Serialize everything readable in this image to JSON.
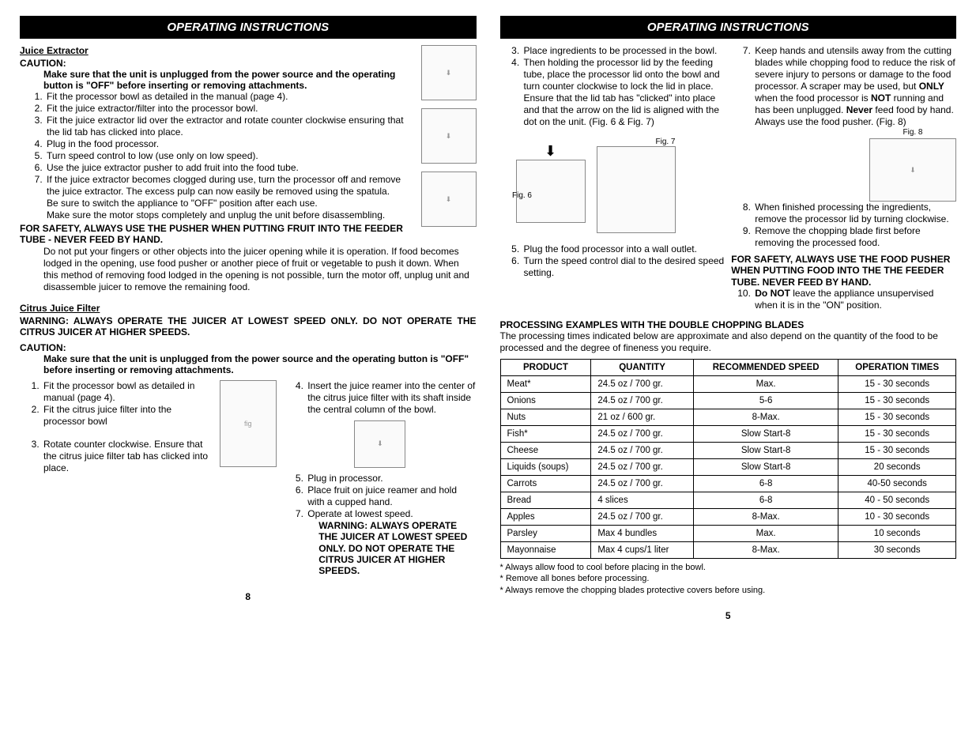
{
  "header": "OPERATING INSTRUCTIONS",
  "left": {
    "juice_title": "Juice Extractor",
    "caution_label": "CAUTION:",
    "caution_text": "Make sure that the unit is unplugged from the power source and the operating button is \"OFF\" before inserting or removing attachments.",
    "steps": [
      "Fit the processor bowl as detailed in the manual (page 4).",
      "Fit the juice extractor/filter into the processor bowl.",
      "Fit the juice extractor lid over the extractor and rotate counter clockwise ensuring that the lid tab has clicked into place.",
      "Plug in the food processor.",
      "Turn speed control to low (use only on low speed).",
      "Use the juice extractor pusher to add fruit into the food tube.",
      "If the juice extractor becomes clogged during use, turn the processor off and remove the juice extractor. The excess pulp can now  easily be removed using the spatula."
    ],
    "post_step7a": "Be sure to switch the appliance to \"OFF\" position after each use.",
    "post_step7b": "Make sure the motor stops completely and unplug the unit before disassembling.",
    "safety1a": "FOR SAFETY, ALWAYS USE THE PUSHER WHEN PUTTING FRUIT INTO THE FEEDER TUBE - NEVER FEED BY HAND.",
    "safety1b": "Do not put your fingers or other objects into the juicer opening while it is operation.  If food becomes lodged in the opening, use food pusher or another piece of fruit or vegetable to push it down.  When this method of removing food lodged in the opening is not possible, turn the motor off, unplug unit and disassemble juicer to remove the remaining food.",
    "citrus_title": "Citrus Juice Filter",
    "warn_label": "WARNING:",
    "citrus_warn": "ALWAYS OPERATE THE JUICER AT LOWEST SPEED ONLY.  DO NOT OPERATE THE CITRUS JUICER AT HIGHER SPEEDS.",
    "caution2_text": "Make sure that the unit is unplugged from the power source and the operating button is \"OFF\" before inserting or removing attachments.",
    "citrus_steps_a": [
      "Fit the processor bowl as detailed in manual (page 4).",
      "Fit the citrus juice filter into the processor bowl",
      "Rotate counter clockwise. Ensure that the citrus juice filter tab has clicked into place."
    ],
    "citrus_steps_b": [
      "Insert the juice reamer into the center of the citrus juice filter with its shaft inside the central column of the bowl.",
      "Plug in processor.",
      "Place fruit on juice reamer and hold with a cupped hand.",
      "Operate at lowest speed."
    ],
    "citrus_final_warn": "WARNING: ALWAYS OPERATE THE JUICER AT LOWEST SPEED ONLY.  DO NOT OPERATE THE CITRUS JUICER AT HIGHER SPEEDS.",
    "page_num": "8"
  },
  "right": {
    "steps_a": [
      "Place ingredients to be processed in the bowl.",
      "Then holding the processor lid by the feeding tube, place the processor lid onto the bowl  and turn counter clockwise to lock the lid in place. Ensure that the lid tab has \"clicked\" into place and that the arrow on the lid is aligned with the dot on the unit. (Fig. 6 & Fig. 7)"
    ],
    "fig6": "Fig. 6",
    "fig7": "Fig. 7",
    "fig8": "Fig. 8",
    "steps_56": [
      "Plug the food processor into a wall outlet.",
      "Turn the speed control dial to the desired speed setting."
    ],
    "step7_pre": "Keep hands and utensils away from the cutting blades while chopping food to reduce the risk of severe injury to persons or damage to the food processor. A scraper may be used, but ",
    "step7_only": "ONLY",
    "step7_mid": " when the food processor is ",
    "step7_not": "NOT",
    "step7_mid2": " running and has been unplugged. ",
    "step7_never": "Never",
    "step7_end": " feed food by hand. Always use the food pusher. (Fig. 8)",
    "steps_89": [
      "When finished processing the ingredients, remove the processor lid by turning clockwise.",
      "Remove the chopping blade first before removing the processed food."
    ],
    "safety2": "FOR SAFETY, ALWAYS USE THE FOOD PUSHER WHEN PUTTING FOOD INTO THE THE FEEDER TUBE.  NEVER FEED BY HAND.",
    "step10_donot": "Do NOT",
    "step10_rest": " leave the appliance unsupervised when it is in the \"ON\" position.",
    "proc_heading": "PROCESSING EXAMPLES WITH THE DOUBLE CHOPPING BLADES",
    "proc_intro": "The processing times indicated below are approximate and also depend on the quantity of the food to be processed and the degree of fineness you require.",
    "table": {
      "headers": [
        "PRODUCT",
        "QUANTITY",
        "RECOMMENDED SPEED",
        "OPERATION TIMES"
      ],
      "rows": [
        [
          "Meat*",
          "24.5 oz / 700 gr.",
          "Max.",
          "15 - 30 seconds"
        ],
        [
          "Onions",
          "24.5 oz / 700 gr.",
          "5-6",
          "15 - 30 seconds"
        ],
        [
          "Nuts",
          "21 oz / 600 gr.",
          "8-Max.",
          "15 - 30 seconds"
        ],
        [
          "Fish*",
          "24.5 oz / 700 gr.",
          "Slow Start-8",
          "15 - 30 seconds"
        ],
        [
          "Cheese",
          "24.5 oz / 700 gr.",
          "Slow Start-8",
          "15 - 30 seconds"
        ],
        [
          "Liquids (soups)",
          "24.5 oz / 700 gr.",
          "Slow Start-8",
          "20 seconds"
        ],
        [
          "Carrots",
          "24.5 oz / 700 gr.",
          "6-8",
          "40-50 seconds"
        ],
        [
          "Bread",
          "4 slices",
          "6-8",
          "40 - 50 seconds"
        ],
        [
          "Apples",
          "24.5 oz / 700 gr.",
          "8-Max.",
          "10 - 30 seconds"
        ],
        [
          "Parsley",
          "Max 4 bundles",
          "Max.",
          "10 seconds"
        ],
        [
          "Mayonnaise",
          "Max 4 cups/1 liter",
          "8-Max.",
          "30 seconds"
        ]
      ]
    },
    "footnotes": [
      "* Always allow food to cool before placing in the bowl.",
      "* Remove all bones before processing.",
      "* Always remove the chopping blades protective covers before using."
    ],
    "page_num": "5"
  }
}
